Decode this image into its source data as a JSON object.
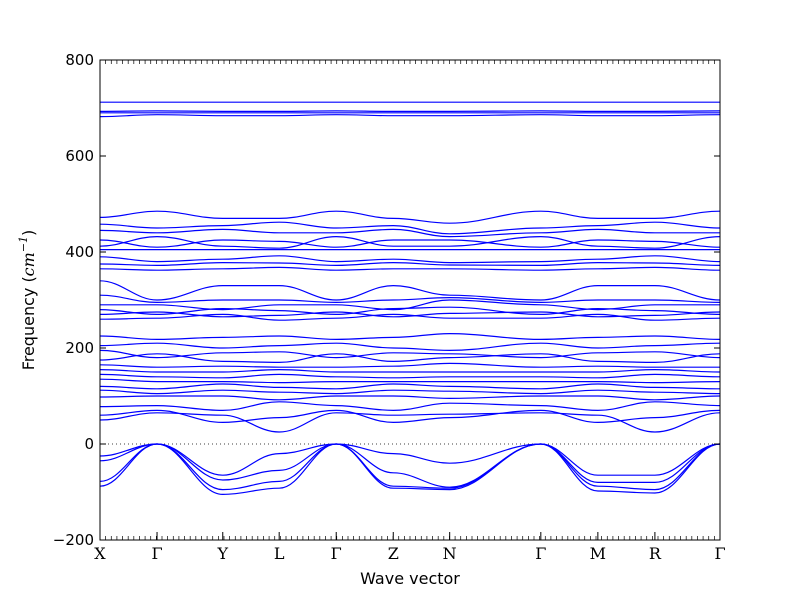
{
  "chart_data": {
    "type": "line",
    "title": "",
    "xlabel": "Wave vector",
    "ylabel": {
      "prefix": "Frequency (",
      "unit": "cm",
      "exponent": "−1",
      "suffix": ")"
    },
    "ylim": [
      -200,
      800
    ],
    "yticks": [
      "−200",
      "0",
      "200",
      "400",
      "600",
      "800"
    ],
    "ytick_values": [
      -200,
      0,
      200,
      400,
      600,
      800
    ],
    "xticks": [
      "X",
      "Γ",
      "Y",
      "L",
      "Γ",
      "Z",
      "N",
      "Γ",
      "M",
      "R",
      "Γ"
    ],
    "xtick_positions": [
      0,
      0.092,
      0.198,
      0.289,
      0.381,
      0.473,
      0.564,
      0.711,
      0.803,
      0.895,
      1.0
    ],
    "zero_line": 0,
    "line_color": "#0000ff",
    "series": [
      {
        "values": [
          712,
          712,
          712,
          712,
          712,
          712,
          712,
          712,
          712,
          712,
          712
        ]
      },
      {
        "values": [
          693,
          694,
          693,
          693,
          694,
          693,
          693,
          694,
          693,
          693,
          694
        ]
      },
      {
        "values": [
          690,
          690,
          690,
          690,
          690,
          690,
          690,
          690,
          690,
          690,
          690
        ]
      },
      {
        "values": [
          682,
          686,
          684,
          684,
          686,
          684,
          684,
          686,
          684,
          684,
          686
        ]
      },
      {
        "values": [
          472,
          485,
          470,
          470,
          485,
          470,
          460,
          485,
          470,
          470,
          485
        ]
      },
      {
        "values": [
          458,
          450,
          455,
          462,
          450,
          455,
          438,
          450,
          455,
          462,
          450
        ]
      },
      {
        "values": [
          445,
          440,
          447,
          440,
          440,
          447,
          432,
          440,
          447,
          440,
          440
        ]
      },
      {
        "values": [
          425,
          410,
          425,
          422,
          410,
          425,
          425,
          410,
          425,
          422,
          410
        ]
      },
      {
        "values": [
          412,
          432,
          412,
          408,
          432,
          412,
          412,
          432,
          412,
          408,
          432
        ]
      },
      {
        "values": [
          405,
          405,
          405,
          405,
          405,
          405,
          405,
          405,
          405,
          405,
          405
        ]
      },
      {
        "values": [
          390,
          380,
          385,
          392,
          380,
          385,
          378,
          380,
          385,
          392,
          380
        ]
      },
      {
        "values": [
          375,
          372,
          378,
          377,
          372,
          378,
          373,
          372,
          378,
          377,
          372
        ]
      },
      {
        "values": [
          365,
          362,
          365,
          368,
          362,
          365,
          365,
          362,
          365,
          368,
          362
        ]
      },
      {
        "values": [
          340,
          300,
          330,
          330,
          300,
          330,
          310,
          300,
          330,
          330,
          300
        ]
      },
      {
        "values": [
          310,
          295,
          300,
          300,
          295,
          300,
          305,
          295,
          300,
          300,
          295
        ]
      },
      {
        "values": [
          290,
          290,
          280,
          290,
          290,
          280,
          300,
          290,
          280,
          290,
          290
        ]
      },
      {
        "values": [
          280,
          270,
          282,
          278,
          270,
          282,
          285,
          270,
          282,
          278,
          270
        ]
      },
      {
        "values": [
          270,
          275,
          265,
          268,
          275,
          265,
          272,
          275,
          265,
          268,
          275
        ]
      },
      {
        "values": [
          260,
          262,
          270,
          258,
          262,
          270,
          262,
          262,
          270,
          258,
          262
        ]
      },
      {
        "values": [
          225,
          218,
          222,
          225,
          218,
          222,
          230,
          218,
          222,
          225,
          218
        ]
      },
      {
        "values": [
          205,
          210,
          200,
          205,
          210,
          200,
          195,
          210,
          200,
          205,
          210
        ]
      },
      {
        "values": [
          195,
          180,
          190,
          192,
          180,
          190,
          188,
          180,
          190,
          192,
          180
        ]
      },
      {
        "values": [
          175,
          188,
          172,
          170,
          188,
          172,
          180,
          188,
          172,
          170,
          188
        ]
      },
      {
        "values": [
          165,
          160,
          162,
          160,
          160,
          162,
          168,
          160,
          162,
          160,
          160
        ]
      },
      {
        "values": [
          155,
          150,
          150,
          155,
          150,
          150,
          150,
          150,
          150,
          155,
          150
        ]
      },
      {
        "values": [
          145,
          140,
          138,
          145,
          140,
          138,
          140,
          140,
          138,
          145,
          140
        ]
      },
      {
        "values": [
          135,
          130,
          130,
          128,
          130,
          130,
          130,
          130,
          130,
          128,
          130
        ]
      },
      {
        "values": [
          120,
          115,
          125,
          118,
          115,
          125,
          120,
          115,
          125,
          118,
          115
        ]
      },
      {
        "values": [
          112,
          105,
          112,
          108,
          105,
          112,
          110,
          105,
          112,
          108,
          105
        ]
      },
      {
        "values": [
          98,
          100,
          100,
          92,
          100,
          100,
          95,
          100,
          100,
          92,
          100
        ]
      },
      {
        "values": [
          78,
          80,
          70,
          88,
          80,
          70,
          85,
          80,
          70,
          88,
          80
        ]
      },
      {
        "values": [
          60,
          70,
          45,
          55,
          70,
          45,
          55,
          70,
          45,
          55,
          70
        ]
      },
      {
        "values": [
          50,
          65,
          60,
          25,
          65,
          60,
          62,
          65,
          60,
          25,
          65
        ]
      },
      {
        "values": [
          -25,
          0,
          -65,
          -20,
          0,
          -20,
          -40,
          0,
          -65,
          -65,
          0
        ]
      },
      {
        "values": [
          -35,
          0,
          -75,
          -55,
          0,
          -60,
          -90,
          0,
          -80,
          -80,
          0
        ]
      },
      {
        "values": [
          -78,
          0,
          -95,
          -78,
          0,
          -88,
          -92,
          0,
          -88,
          -95,
          0
        ]
      },
      {
        "values": [
          -88,
          0,
          -105,
          -92,
          0,
          -92,
          -95,
          0,
          -98,
          -102,
          0
        ]
      }
    ]
  }
}
